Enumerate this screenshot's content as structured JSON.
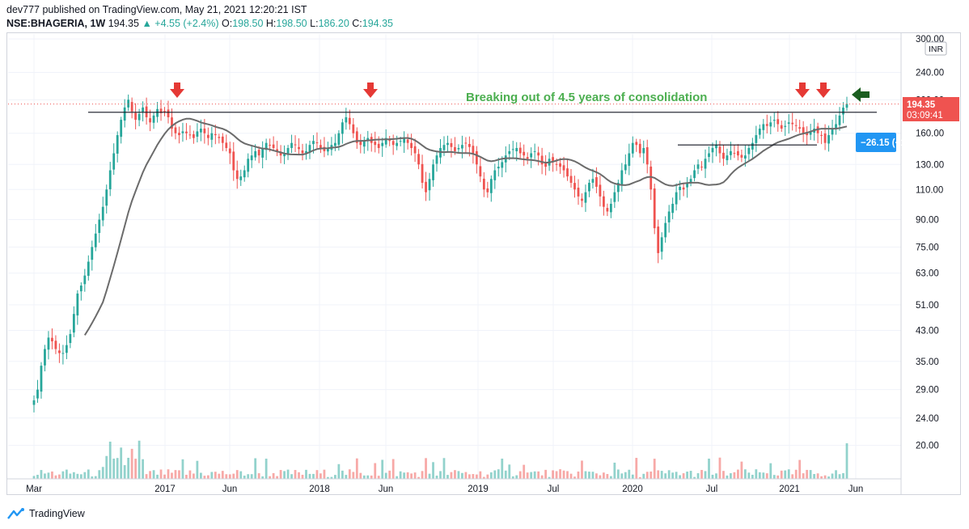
{
  "header": {
    "publish_line": "dev777 published on TradingView.com, May 21, 2021 12:20:21 IST",
    "symbol": "NSE:BHAGERIA, 1W",
    "last": "194.35",
    "change": "▲ +4.55 (+2.4%)",
    "o_label": "O:",
    "o_value": "198.50",
    "h_label": "H:",
    "h_value": "198.50",
    "l_label": "L:",
    "l_value": "186.20",
    "c_label": "C:",
    "c_value": "194.35"
  },
  "annotation": "Breaking out of 4.5 years of consolidation",
  "price_badge": {
    "price": "194.35",
    "countdown": "03:09:41",
    "currency": "INR"
  },
  "measure_badge": "−26.15 (−1",
  "footer": {
    "brand": "TradingView"
  },
  "colors": {
    "up": "#26a69a",
    "down": "#ef5350",
    "ma": "#6b6b6b",
    "annotation": "#4caf50",
    "arrow_red": "#e53935",
    "arrow_green": "#1b5e20",
    "badge_blue": "#2196f3",
    "price_badge": "#ef5350"
  },
  "chart_data": {
    "type": "candlestick",
    "title": "NSE:BHAGERIA, 1W",
    "scale": "log",
    "currency": "INR",
    "y_ticks": [
      "300.00",
      "240.00",
      "200.00",
      "160.00",
      "130.00",
      "110.00",
      "90.00",
      "75.00",
      "63.00",
      "51.00",
      "43.00",
      "35.00",
      "29.00",
      "24.00",
      "20.00"
    ],
    "x_ticks": [
      "Mar",
      "2017",
      "Jun",
      "2018",
      "Jun",
      "2019",
      "Jul",
      "2020",
      "Jul",
      "2021",
      "Jun"
    ],
    "ylim": [
      16,
      310
    ],
    "resistance_level": 184,
    "secondary_level": 148,
    "closes": [
      27,
      29,
      34,
      38,
      41,
      40,
      38,
      37,
      37,
      39,
      42,
      48,
      55,
      58,
      62,
      68,
      75,
      82,
      90,
      98,
      110,
      125,
      140,
      158,
      175,
      190,
      200,
      185,
      175,
      182,
      190,
      178,
      172,
      180,
      188,
      183,
      185,
      178,
      165,
      160,
      158,
      162,
      160,
      158,
      155,
      162,
      165,
      160,
      155,
      160,
      158,
      155,
      150,
      145,
      140,
      125,
      118,
      120,
      125,
      135,
      138,
      142,
      138,
      145,
      150,
      148,
      145,
      142,
      138,
      140,
      145,
      150,
      148,
      144,
      140,
      142,
      148,
      152,
      150,
      145,
      142,
      145,
      148,
      150,
      160,
      172,
      178,
      170,
      160,
      150,
      148,
      152,
      155,
      150,
      148,
      145,
      150,
      155,
      152,
      148,
      150,
      152,
      155,
      150,
      145,
      140,
      130,
      115,
      108,
      118,
      130,
      138,
      145,
      148,
      150,
      146,
      142,
      145,
      148,
      150,
      146,
      140,
      130,
      120,
      110,
      108,
      118,
      125,
      128,
      132,
      138,
      142,
      144,
      145,
      140,
      138,
      135,
      140,
      142,
      138,
      130,
      128,
      135,
      132,
      130,
      128,
      125,
      120,
      115,
      110,
      105,
      102,
      108,
      115,
      118,
      112,
      105,
      98,
      95,
      100,
      108,
      115,
      125,
      130,
      140,
      150,
      148,
      140,
      145,
      130,
      110,
      85,
      72,
      80,
      88,
      95,
      100,
      108,
      112,
      110,
      115,
      118,
      125,
      130,
      128,
      135,
      140,
      145,
      148,
      140,
      135,
      138,
      142,
      140,
      138,
      136,
      138,
      145,
      150,
      158,
      165,
      170,
      168,
      172,
      175,
      170,
      165,
      168,
      172,
      170,
      168,
      165,
      160,
      158,
      162,
      165,
      160,
      158,
      150,
      158,
      165,
      170,
      180,
      189.8,
      194.35
    ]
  }
}
